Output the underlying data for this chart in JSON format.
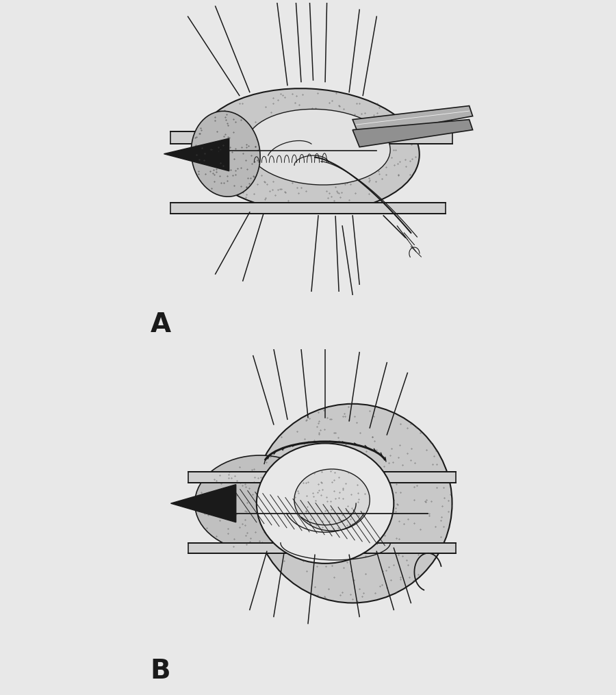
{
  "background_color": "#e8e8e8",
  "label_A": "A",
  "label_B": "B",
  "label_fontsize": 28,
  "label_fontweight": "bold",
  "line_color": "#1a1a1a"
}
